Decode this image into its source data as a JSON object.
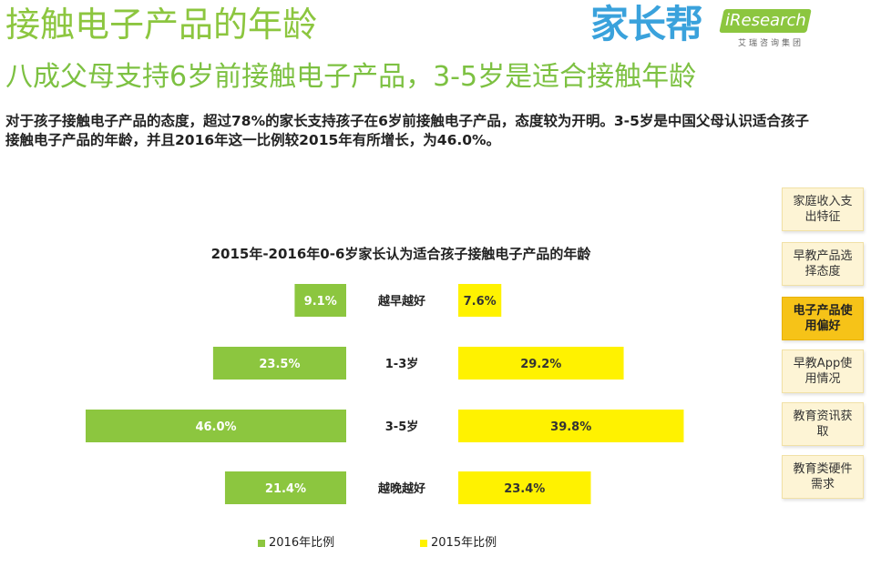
{
  "header": {
    "title": "接触电子产品的年龄",
    "subtitle": "八成父母支持6岁前接触电子产品，3-5岁是适合接触年龄",
    "description": "对于孩子接触电子产品的态度，超过78%的家长支持孩子在6岁前接触电子产品，态度较为开明。3-5岁是中国父母认识适合孩子接触电子产品的年龄，并且2016年这一比例较2015年有所增长，为46.0%。"
  },
  "logos": {
    "jiazhangbang": "家长帮",
    "iresearch": "iResearch",
    "iresearch_cn": "艾瑞咨询集团"
  },
  "sidebar": {
    "items": [
      {
        "label": "家庭收入支出特征",
        "active": false
      },
      {
        "label": "早教产品选择态度",
        "active": false
      },
      {
        "label": "电子产品使用偏好",
        "active": true
      },
      {
        "label": "早教App使用情况",
        "active": false
      },
      {
        "label": "教育资讯获取",
        "active": false
      },
      {
        "label": "教育类硬件需求",
        "active": false
      }
    ]
  },
  "colors": {
    "green": "#8cc63f",
    "yellow": "#fff200",
    "nav_bg": "#fdf4d5",
    "nav_active": "#f6c318"
  },
  "chart_data": {
    "type": "bar",
    "title": "2015年-2016年0-6岁家长认为适合孩子接触电子产品的年龄",
    "categories": [
      "越早越好",
      "1-3岁",
      "3-5岁",
      "越晚越好"
    ],
    "series": [
      {
        "name": "2016年比例",
        "values": [
          9.1,
          23.5,
          46.0,
          21.4
        ],
        "labels": [
          "9.1%",
          "23.5%",
          "46.0%",
          "21.4%"
        ],
        "color": "#8cc63f"
      },
      {
        "name": "2015年比例",
        "values": [
          7.6,
          29.2,
          39.8,
          23.4
        ],
        "labels": [
          "7.6%",
          "29.2%",
          "39.8%",
          "23.4%"
        ],
        "color": "#fff200"
      }
    ],
    "legend": "bottom"
  }
}
